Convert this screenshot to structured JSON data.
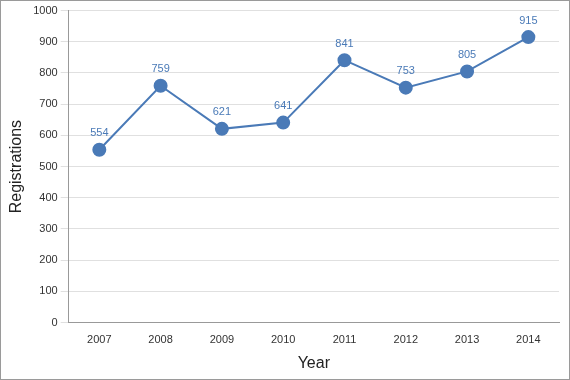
{
  "chart_data": {
    "type": "line",
    "x_label": "Year",
    "y_label": "Registrations",
    "categories": [
      "2007",
      "2008",
      "2009",
      "2010",
      "2011",
      "2012",
      "2013",
      "2014"
    ],
    "values": [
      554,
      759,
      621,
      641,
      841,
      753,
      805,
      915
    ],
    "color": "#4a7ab7",
    "marker": "circle",
    "ylim": [
      0,
      1000
    ],
    "yticks": [
      0,
      100,
      200,
      300,
      400,
      500,
      600,
      700,
      800,
      900,
      1000
    ],
    "grid": true,
    "data_labels": true
  }
}
